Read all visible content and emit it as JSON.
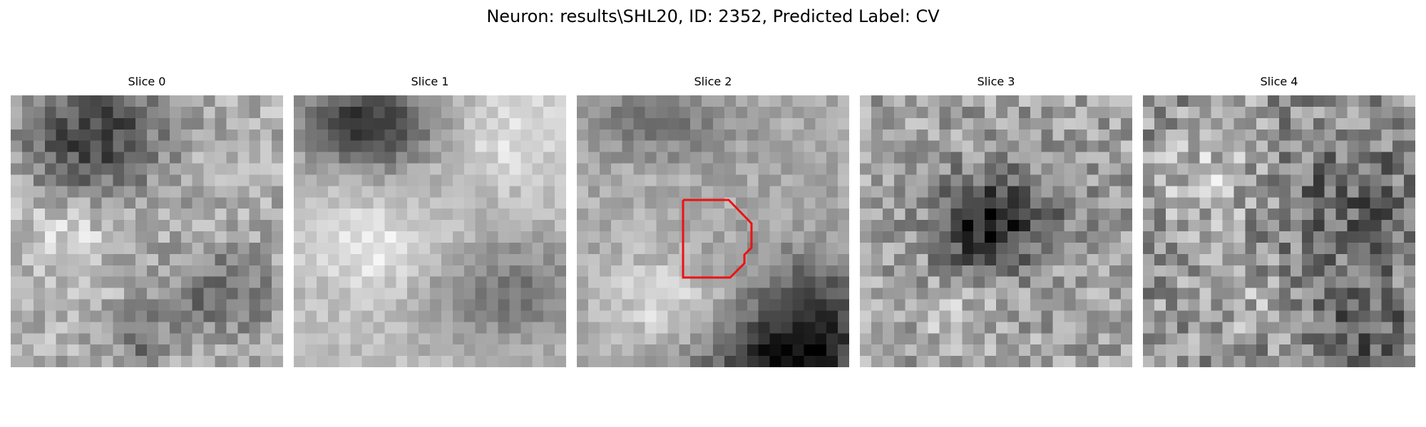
{
  "figure": {
    "title": "Neuron: results\\SHL20, ID: 2352, Predicted Label: CV"
  },
  "panels": [
    {
      "title": "Slice 0"
    },
    {
      "title": "Slice 1"
    },
    {
      "title": "Slice 2"
    },
    {
      "title": "Slice 3"
    },
    {
      "title": "Slice 4"
    }
  ],
  "contour": {
    "color": "#ee1111",
    "slice": "Slice 2"
  },
  "colormap": "gray"
}
